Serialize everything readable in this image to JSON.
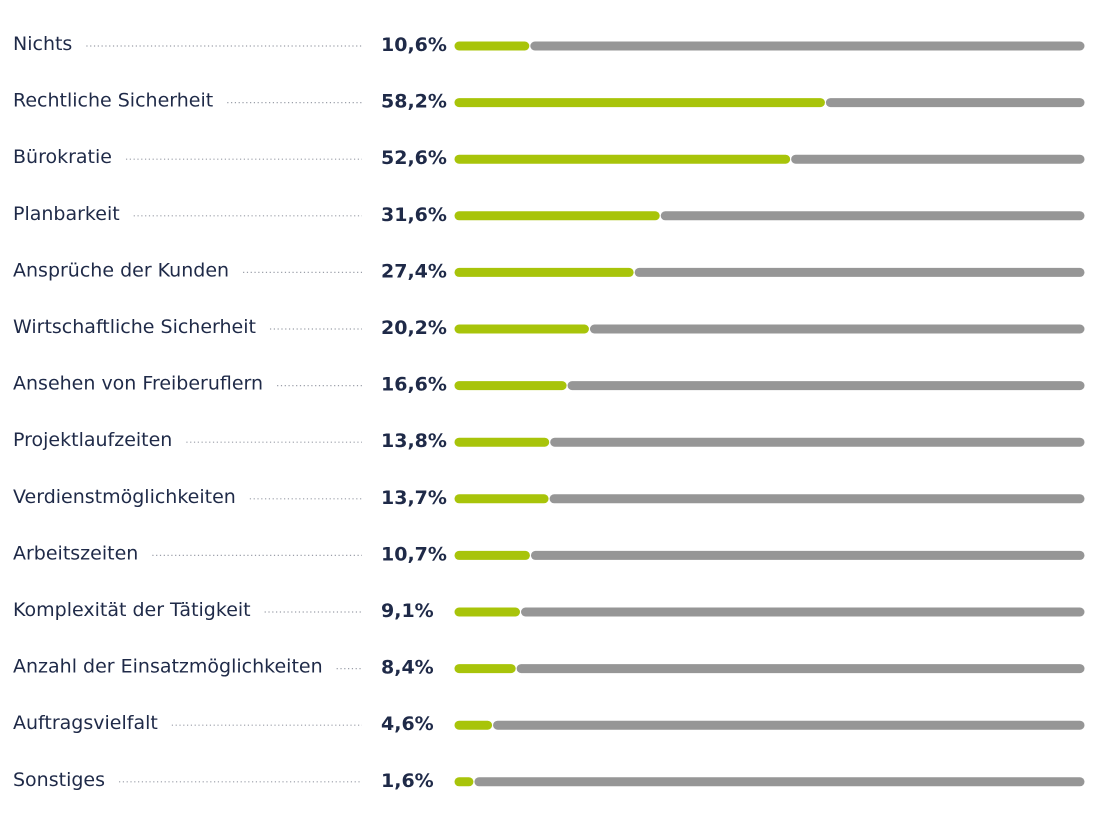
{
  "chart_data": {
    "type": "bar",
    "orientation": "horizontal",
    "categories": [
      "Nichts",
      "Rechtliche Sicherheit",
      "Bürokratie",
      "Planbarkeit",
      "Ansprüche der Kunden",
      "Wirtschaftliche Sicherheit",
      "Ansehen von Freiberuflern",
      "Projektlaufzeiten",
      "Verdienstmöglichkeiten",
      "Arbeitszeiten",
      "Komplexität der Tätigkeit",
      "Anzahl der Einsatzmöglichkeiten",
      "Auftragsvielfalt",
      "Sonstiges"
    ],
    "values": [
      10.6,
      58.2,
      52.6,
      31.6,
      27.4,
      20.2,
      16.6,
      13.8,
      13.7,
      10.7,
      9.1,
      8.4,
      4.6,
      1.6
    ],
    "value_labels": [
      "10,6%",
      "58,2%",
      "52,6%",
      "31,6%",
      "27,4%",
      "20,2%",
      "16,6%",
      "13,8%",
      "13,7%",
      "10,7%",
      "9,1%",
      "8,4%",
      "4,6%",
      "1,6%"
    ],
    "xlim": [
      0,
      100
    ],
    "unit": "%",
    "grid": false,
    "legend": "none",
    "colors": {
      "value_bar": "#a8c40a",
      "remainder_bar": "#969696",
      "text": "#1f2a48",
      "leader_dots": "#9a9ea8"
    }
  }
}
